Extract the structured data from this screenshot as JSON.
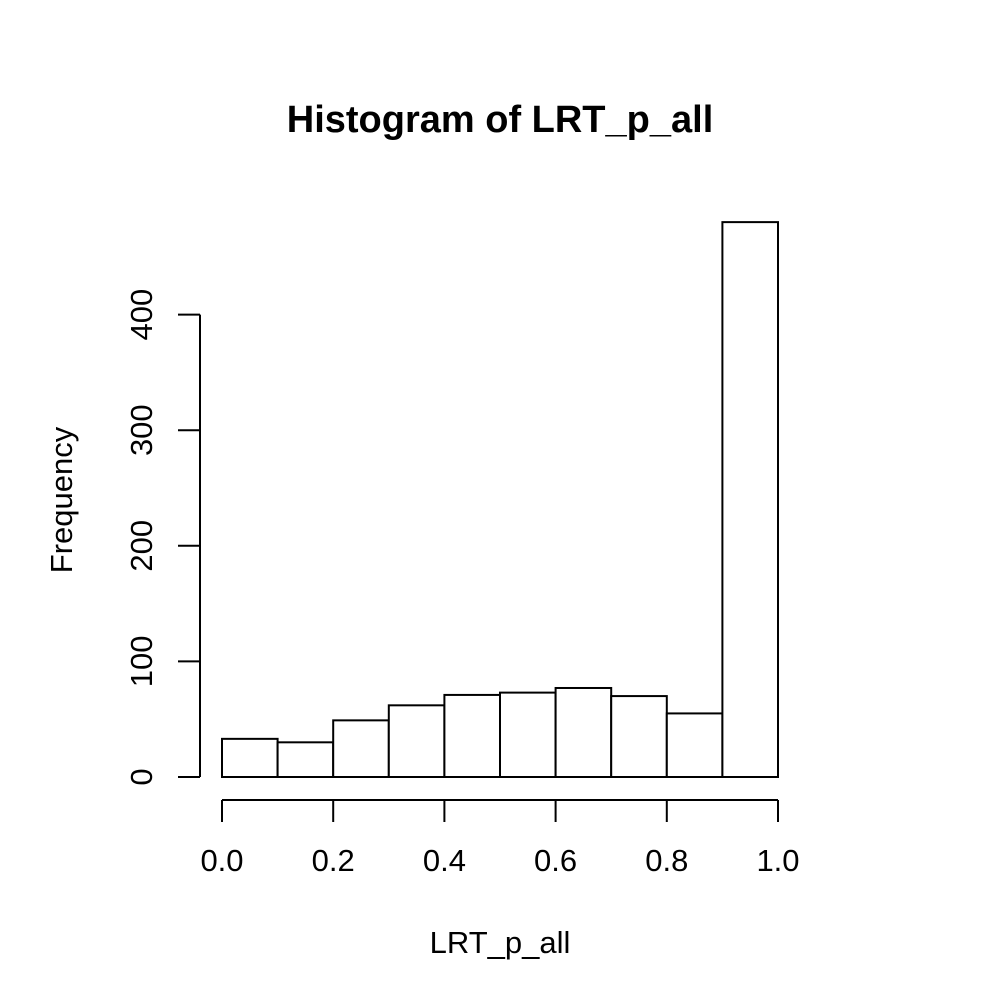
{
  "chart_data": {
    "type": "bar",
    "title": "Histogram of LRT_p_all",
    "xlabel": "LRT_p_all",
    "ylabel": "Frequency",
    "bin_edges": [
      0.0,
      0.1,
      0.2,
      0.3,
      0.4,
      0.5,
      0.6,
      0.7,
      0.8,
      0.9,
      1.0
    ],
    "values": [
      33,
      30,
      49,
      62,
      71,
      73,
      77,
      70,
      55,
      480
    ],
    "xlim": [
      0.0,
      1.0
    ],
    "ylim": [
      0,
      400
    ],
    "x_ticks": [
      {
        "value": 0.0,
        "label": "0.0"
      },
      {
        "value": 0.2,
        "label": "0.2"
      },
      {
        "value": 0.4,
        "label": "0.4"
      },
      {
        "value": 0.6,
        "label": "0.6"
      },
      {
        "value": 0.8,
        "label": "0.8"
      },
      {
        "value": 1.0,
        "label": "1.0"
      }
    ],
    "y_ticks": [
      {
        "value": 0,
        "label": "0"
      },
      {
        "value": 100,
        "label": "100"
      },
      {
        "value": 200,
        "label": "200"
      },
      {
        "value": 300,
        "label": "300"
      },
      {
        "value": 400,
        "label": "400"
      }
    ],
    "grid": false,
    "colors": {
      "bar_fill": "#ffffff",
      "bar_stroke": "#000000",
      "background": "#ffffff"
    }
  }
}
